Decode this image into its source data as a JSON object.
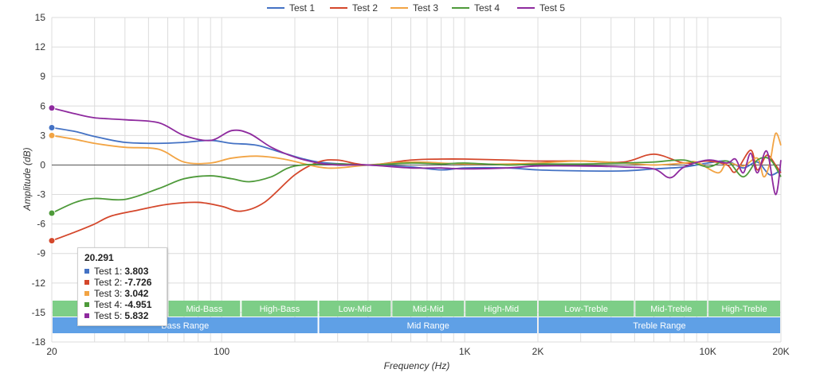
{
  "chart_data": {
    "type": "line",
    "title": "",
    "xlabel": "Frequency (Hz)",
    "ylabel": "Amplitude (dB)",
    "xscale": "log",
    "xlim": [
      20,
      20000
    ],
    "ylim": [
      -18,
      15
    ],
    "yticks": [
      -18,
      -15,
      -12,
      -9,
      -6,
      -3,
      0,
      3,
      6,
      9,
      12,
      15
    ],
    "xticks": [
      {
        "value": 20,
        "label": "20"
      },
      {
        "value": 100,
        "label": "100"
      },
      {
        "value": 1000,
        "label": "1K"
      },
      {
        "value": 2000,
        "label": "2K"
      },
      {
        "value": 10000,
        "label": "10K"
      },
      {
        "value": 20000,
        "label": "20K"
      }
    ],
    "grid": true,
    "legend": "top-center",
    "series": [
      {
        "name": "Test 1",
        "color": "#4472c4",
        "points": [
          [
            20,
            3.8
          ],
          [
            25,
            3.4
          ],
          [
            30,
            2.9
          ],
          [
            40,
            2.3
          ],
          [
            55,
            2.2
          ],
          [
            70,
            2.3
          ],
          [
            90,
            2.5
          ],
          [
            110,
            2.2
          ],
          [
            140,
            2.0
          ],
          [
            180,
            1.2
          ],
          [
            250,
            0.3
          ],
          [
            400,
            0.0
          ],
          [
            600,
            -0.2
          ],
          [
            800,
            -0.5
          ],
          [
            1000,
            -0.3
          ],
          [
            1500,
            -0.3
          ],
          [
            2000,
            -0.5
          ],
          [
            3000,
            -0.6
          ],
          [
            4500,
            -0.6
          ],
          [
            6000,
            -0.4
          ],
          [
            8000,
            -0.2
          ],
          [
            10000,
            0.2
          ],
          [
            12000,
            0.4
          ],
          [
            14000,
            -0.3
          ],
          [
            16000,
            0.3
          ],
          [
            18000,
            -1.0
          ],
          [
            20000,
            -0.5
          ]
        ]
      },
      {
        "name": "Test 2",
        "color": "#d4472b",
        "points": [
          [
            20,
            -7.7
          ],
          [
            25,
            -6.8
          ],
          [
            30,
            -6.0
          ],
          [
            35,
            -5.2
          ],
          [
            45,
            -4.6
          ],
          [
            60,
            -4.0
          ],
          [
            80,
            -3.8
          ],
          [
            100,
            -4.2
          ],
          [
            120,
            -4.7
          ],
          [
            150,
            -3.8
          ],
          [
            200,
            -1.0
          ],
          [
            250,
            0.3
          ],
          [
            300,
            0.5
          ],
          [
            400,
            0.0
          ],
          [
            600,
            0.5
          ],
          [
            800,
            0.6
          ],
          [
            1000,
            0.6
          ],
          [
            1500,
            0.5
          ],
          [
            2000,
            0.4
          ],
          [
            3000,
            0.4
          ],
          [
            4500,
            0.3
          ],
          [
            6000,
            1.1
          ],
          [
            8000,
            0.2
          ],
          [
            10000,
            0.4
          ],
          [
            12000,
            0.0
          ],
          [
            13000,
            -0.7
          ],
          [
            15000,
            1.5
          ],
          [
            16000,
            -0.5
          ],
          [
            17500,
            1.0
          ],
          [
            19000,
            0.0
          ],
          [
            20000,
            -0.8
          ]
        ]
      },
      {
        "name": "Test 3",
        "color": "#f2a444",
        "points": [
          [
            20,
            3.0
          ],
          [
            25,
            2.6
          ],
          [
            30,
            2.2
          ],
          [
            40,
            1.8
          ],
          [
            55,
            1.6
          ],
          [
            70,
            0.3
          ],
          [
            90,
            0.2
          ],
          [
            110,
            0.7
          ],
          [
            140,
            0.9
          ],
          [
            180,
            0.6
          ],
          [
            250,
            -0.2
          ],
          [
            300,
            -0.3
          ],
          [
            400,
            0.0
          ],
          [
            600,
            0.3
          ],
          [
            800,
            0.2
          ],
          [
            1000,
            0.1
          ],
          [
            1500,
            0.1
          ],
          [
            2000,
            0.2
          ],
          [
            3000,
            0.4
          ],
          [
            4500,
            0.2
          ],
          [
            6000,
            0.0
          ],
          [
            8000,
            0.2
          ],
          [
            9000,
            0.3
          ],
          [
            11000,
            -0.8
          ],
          [
            12000,
            0.2
          ],
          [
            14000,
            -0.1
          ],
          [
            16000,
            0.7
          ],
          [
            17000,
            -1.2
          ],
          [
            18000,
            0.2
          ],
          [
            19000,
            3.2
          ],
          [
            20000,
            2.0
          ]
        ]
      },
      {
        "name": "Test 4",
        "color": "#4e9a3a",
        "points": [
          [
            20,
            -4.9
          ],
          [
            25,
            -3.8
          ],
          [
            30,
            -3.4
          ],
          [
            40,
            -3.5
          ],
          [
            55,
            -2.4
          ],
          [
            70,
            -1.4
          ],
          [
            90,
            -1.1
          ],
          [
            110,
            -1.4
          ],
          [
            130,
            -1.7
          ],
          [
            160,
            -1.2
          ],
          [
            200,
            -0.1
          ],
          [
            300,
            0.1
          ],
          [
            400,
            0.0
          ],
          [
            600,
            0.2
          ],
          [
            800,
            0.1
          ],
          [
            1000,
            0.2
          ],
          [
            1500,
            0.0
          ],
          [
            2000,
            0.1
          ],
          [
            3000,
            0.1
          ],
          [
            4500,
            0.2
          ],
          [
            6000,
            0.3
          ],
          [
            8000,
            0.5
          ],
          [
            10000,
            -0.2
          ],
          [
            12000,
            0.4
          ],
          [
            14000,
            -1.2
          ],
          [
            16000,
            0.5
          ],
          [
            18000,
            0.6
          ],
          [
            20000,
            -1.2
          ]
        ]
      },
      {
        "name": "Test 5",
        "color": "#8e2a9e",
        "points": [
          [
            20,
            5.8
          ],
          [
            25,
            5.2
          ],
          [
            30,
            4.8
          ],
          [
            40,
            4.6
          ],
          [
            55,
            4.3
          ],
          [
            70,
            3.0
          ],
          [
            90,
            2.5
          ],
          [
            110,
            3.5
          ],
          [
            130,
            3.2
          ],
          [
            160,
            1.8
          ],
          [
            200,
            0.8
          ],
          [
            250,
            0.2
          ],
          [
            300,
            0.0
          ],
          [
            400,
            0.0
          ],
          [
            600,
            -0.3
          ],
          [
            800,
            -0.3
          ],
          [
            1000,
            -0.4
          ],
          [
            1500,
            -0.3
          ],
          [
            2000,
            -0.1
          ],
          [
            3000,
            -0.1
          ],
          [
            4500,
            -0.2
          ],
          [
            6000,
            -0.4
          ],
          [
            7000,
            -1.3
          ],
          [
            8000,
            -0.2
          ],
          [
            10000,
            0.5
          ],
          [
            12000,
            0.2
          ],
          [
            13000,
            0.6
          ],
          [
            14000,
            -0.8
          ],
          [
            15000,
            1.2
          ],
          [
            16000,
            -0.8
          ],
          [
            17500,
            1.4
          ],
          [
            19000,
            -3.0
          ],
          [
            20000,
            0.5
          ]
        ]
      }
    ],
    "range_bands": {
      "upper": [
        {
          "label": "",
          "from": 20,
          "to": 60
        },
        {
          "label": "Mid-Bass",
          "from": 60,
          "to": 120
        },
        {
          "label": "High-Bass",
          "from": 120,
          "to": 250
        },
        {
          "label": "Low-Mid",
          "from": 250,
          "to": 500
        },
        {
          "label": "Mid-Mid",
          "from": 500,
          "to": 1000
        },
        {
          "label": "High-Mid",
          "from": 1000,
          "to": 2000
        },
        {
          "label": "Low-Treble",
          "from": 2000,
          "to": 5000
        },
        {
          "label": "Mid-Treble",
          "from": 5000,
          "to": 10000
        },
        {
          "label": "High-Treble",
          "from": 10000,
          "to": 20000
        }
      ],
      "lower": [
        {
          "label": "Bass Range",
          "from": 20,
          "to": 250
        },
        {
          "label": "Mid Range",
          "from": 250,
          "to": 2000
        },
        {
          "label": "Treble Range",
          "from": 2000,
          "to": 20000
        }
      ]
    },
    "colors": {
      "upper_band": "#7dce87",
      "lower_band": "#5fa0e6",
      "grid": "#dcdcdc",
      "zero_line": "#555555"
    },
    "tooltip": {
      "title": "20.291",
      "rows": [
        {
          "name": "Test 1:",
          "value": "3.803",
          "color": "#4472c4"
        },
        {
          "name": "Test 2:",
          "value": "-7.726",
          "color": "#d4472b"
        },
        {
          "name": "Test 3:",
          "value": "3.042",
          "color": "#f2a444"
        },
        {
          "name": "Test 4:",
          "value": "-4.951",
          "color": "#4e9a3a"
        },
        {
          "name": "Test 5:",
          "value": "5.832",
          "color": "#8e2a9e"
        }
      ]
    }
  }
}
